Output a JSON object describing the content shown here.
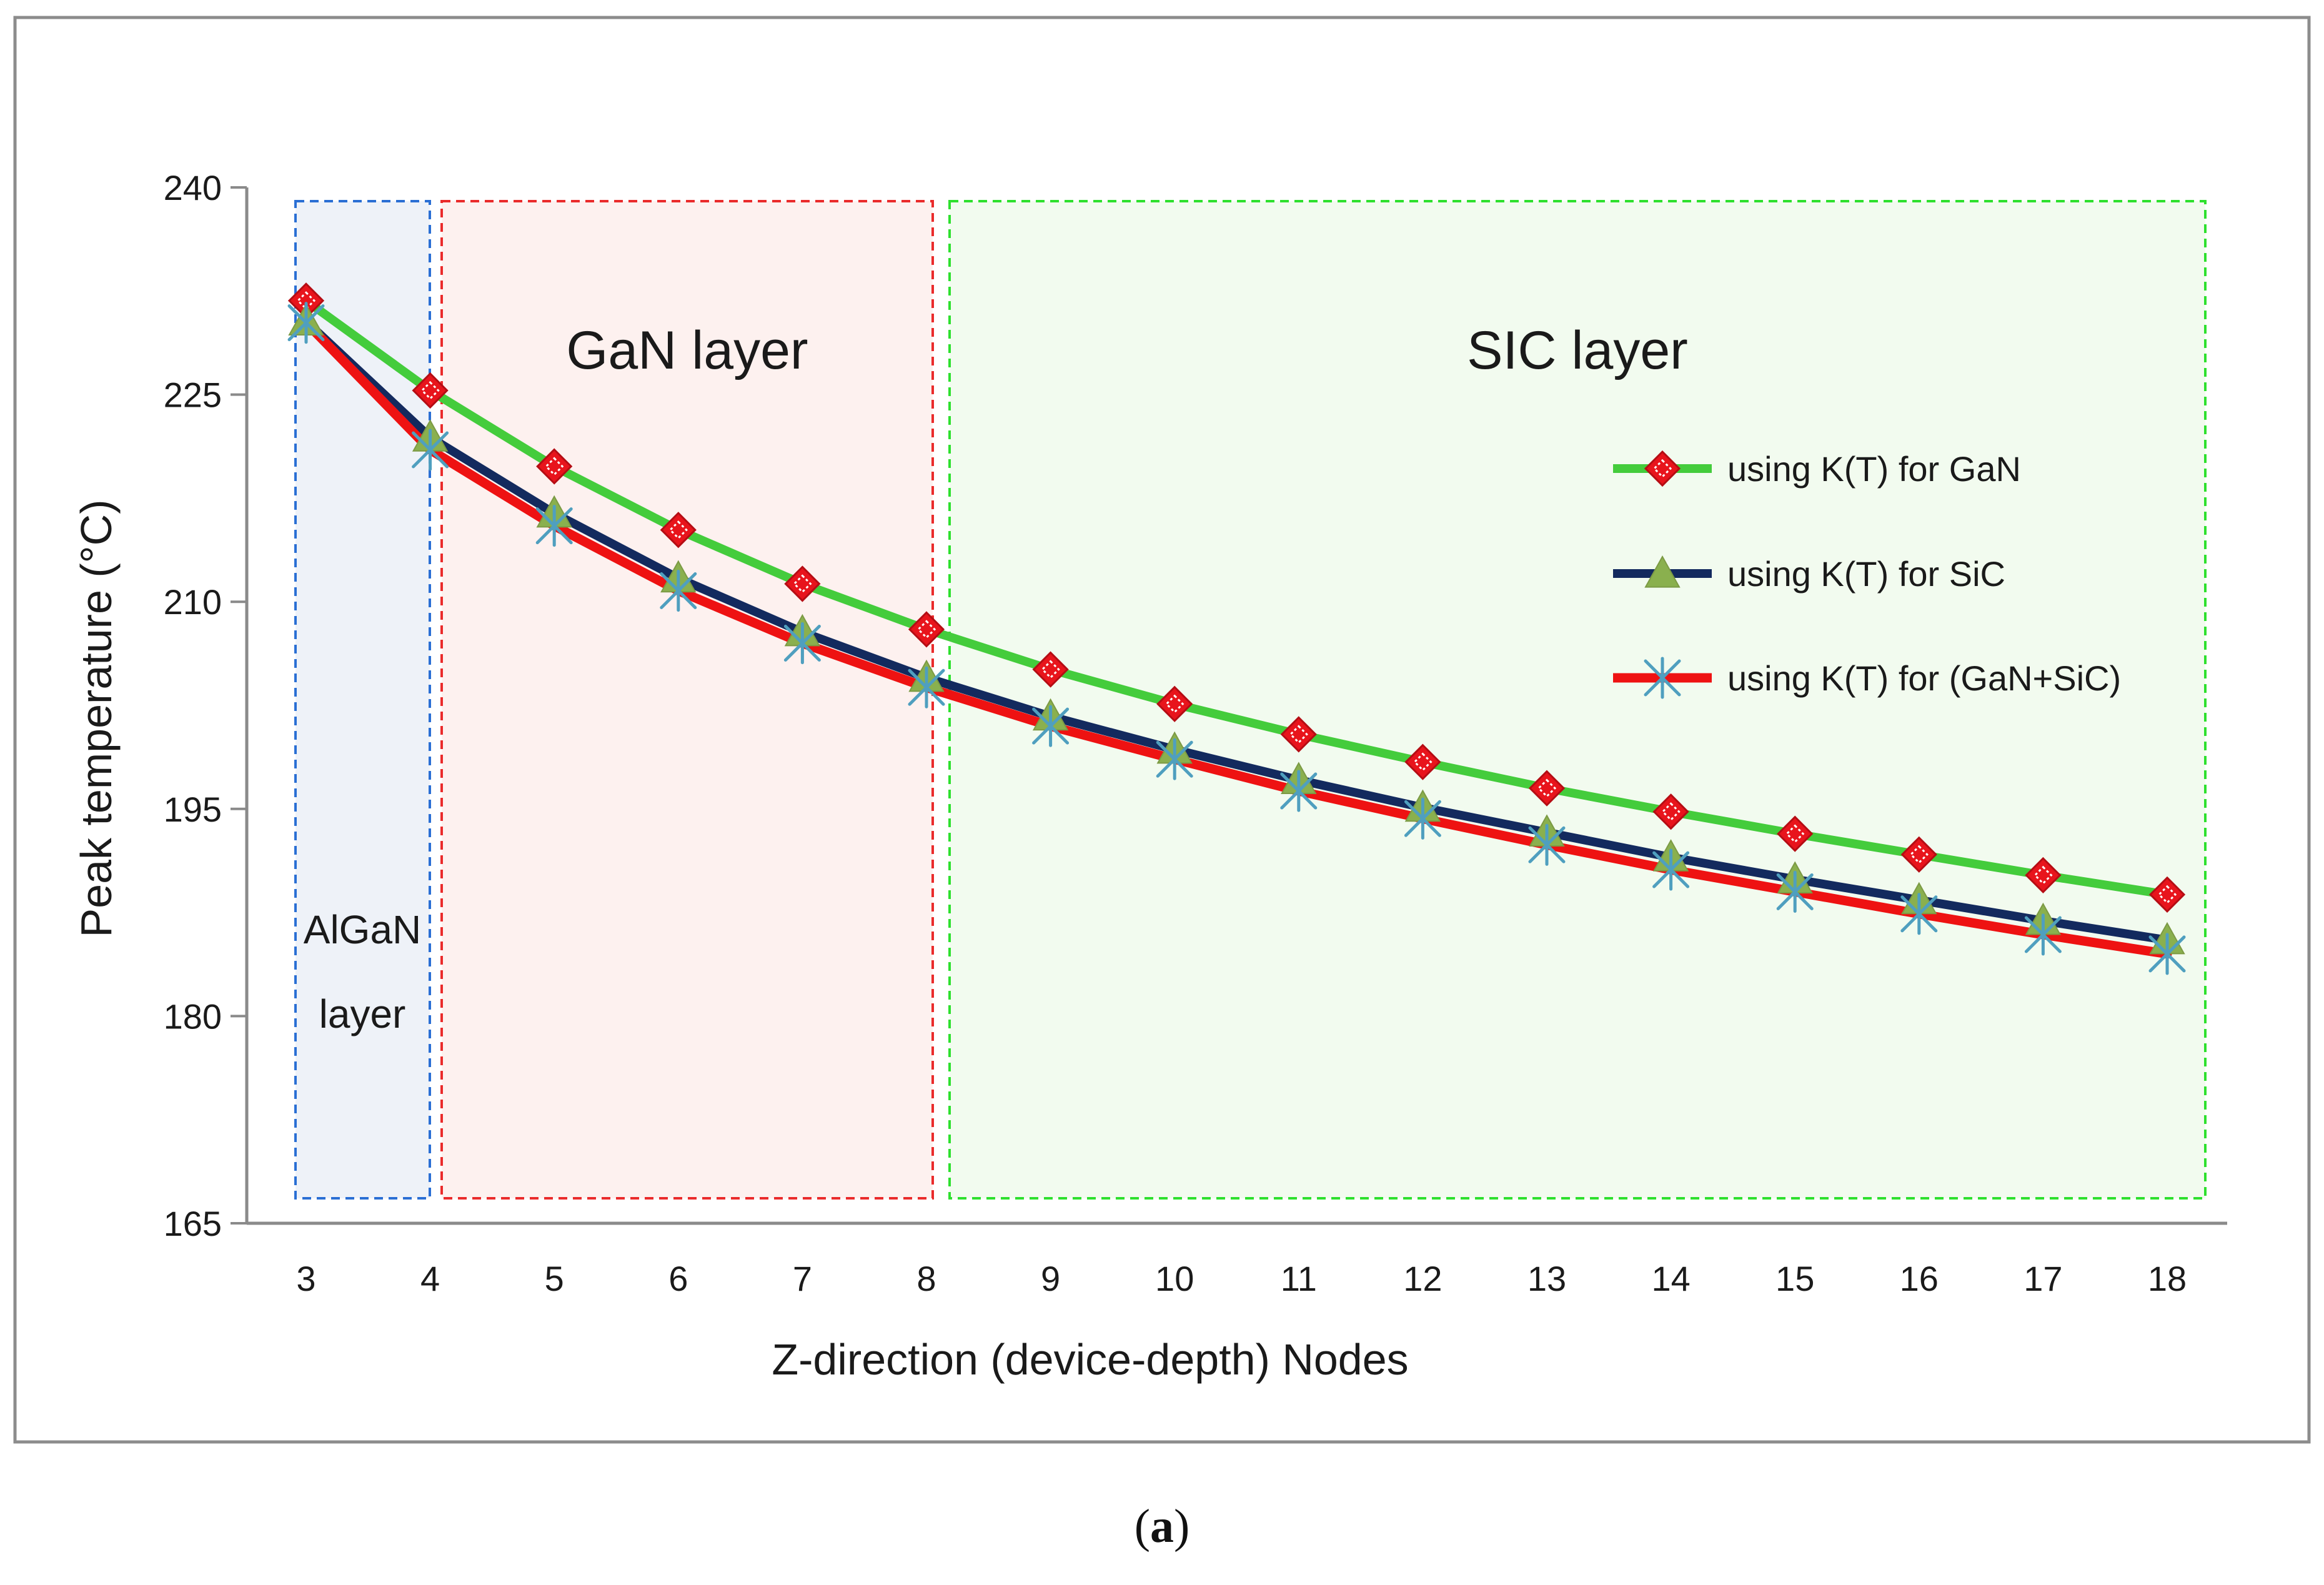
{
  "chart_data": {
    "type": "line",
    "title": "",
    "xlabel": "Z-direction (device-depth) Nodes",
    "ylabel": "Peak temperature (°C)",
    "categories": [
      3,
      4,
      5,
      6,
      7,
      8,
      9,
      10,
      11,
      12,
      13,
      14,
      15,
      16,
      17,
      18
    ],
    "ylim": [
      165,
      240
    ],
    "yticks": [
      165,
      180,
      195,
      210,
      225,
      240
    ],
    "grid": false,
    "legend_position": "right",
    "series": [
      {
        "name": "using K(T) for GaN",
        "color": "#44cc3c",
        "marker": "diamond",
        "marker_color": "#e8141c",
        "values": [
          231.8,
          225.3,
          219.8,
          215.2,
          211.3,
          208.0,
          205.1,
          202.6,
          200.4,
          198.4,
          196.5,
          194.8,
          193.2,
          191.7,
          190.2,
          188.8
        ]
      },
      {
        "name": "using K(T) for SiC",
        "color": "#132a5e",
        "marker": "triangle",
        "marker_color": "#8ab04e",
        "values": [
          230.3,
          221.9,
          216.4,
          211.7,
          207.8,
          204.5,
          201.7,
          199.3,
          197.1,
          195.1,
          193.3,
          191.5,
          189.9,
          188.4,
          186.9,
          185.5
        ]
      },
      {
        "name": "using K(T) for (GaN+SiC)",
        "color": "#ee1212",
        "marker": "asterisk",
        "marker_color": "#4f9fbf",
        "values": [
          230.2,
          221.0,
          215.5,
          210.8,
          207.0,
          203.8,
          201.0,
          198.6,
          196.3,
          194.3,
          192.4,
          190.6,
          189.0,
          187.4,
          185.9,
          184.5
        ]
      }
    ],
    "regions": [
      {
        "label_lines": [
          "AlGaN",
          "layer"
        ],
        "x_from": 3,
        "x_to": 4,
        "stroke": "#2a6fd4",
        "fill": "#eef2f8"
      },
      {
        "label_lines": [
          "GaN layer"
        ],
        "x_from": 4,
        "x_to": 8,
        "stroke": "#ea2b2b",
        "fill": "#fdf1ef"
      },
      {
        "label_lines": [
          "SIC layer"
        ],
        "x_from": 8,
        "x_to": 18,
        "stroke": "#2ee02e",
        "fill": "#f2fbef"
      }
    ]
  },
  "caption": {
    "open": "(",
    "letter": "a",
    "close": ")"
  }
}
